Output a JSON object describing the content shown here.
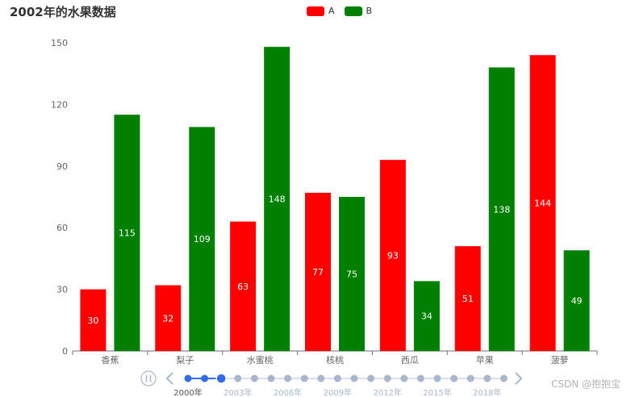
{
  "chart_data": {
    "type": "bar",
    "title": "2002年的水果数据",
    "categories": [
      "香蕉",
      "梨子",
      "水蜜桃",
      "核桃",
      "西瓜",
      "苹果",
      "菠萝"
    ],
    "series": [
      {
        "name": "A",
        "color": "#ff0000",
        "values": [
          30,
          32,
          63,
          77,
          93,
          51,
          144
        ]
      },
      {
        "name": "B",
        "color": "#008000",
        "values": [
          115,
          109,
          148,
          75,
          34,
          138,
          49
        ]
      }
    ],
    "ylim": [
      0,
      150
    ],
    "yticks": [
      0,
      30,
      60,
      90,
      120,
      150
    ],
    "grid": false,
    "legend_position": "top-center",
    "data_labels": "inside"
  },
  "timeline": {
    "play_icon": "pause-icon",
    "labels": [
      "2000年",
      "2003年",
      "2006年",
      "2009年",
      "2012年",
      "2015年",
      "2018年"
    ],
    "point_count": 20,
    "current_index": 2,
    "active_color": "#316bf3",
    "inactive_color": "#a7b7cc"
  },
  "watermark": "CSDN @抱抱宝"
}
